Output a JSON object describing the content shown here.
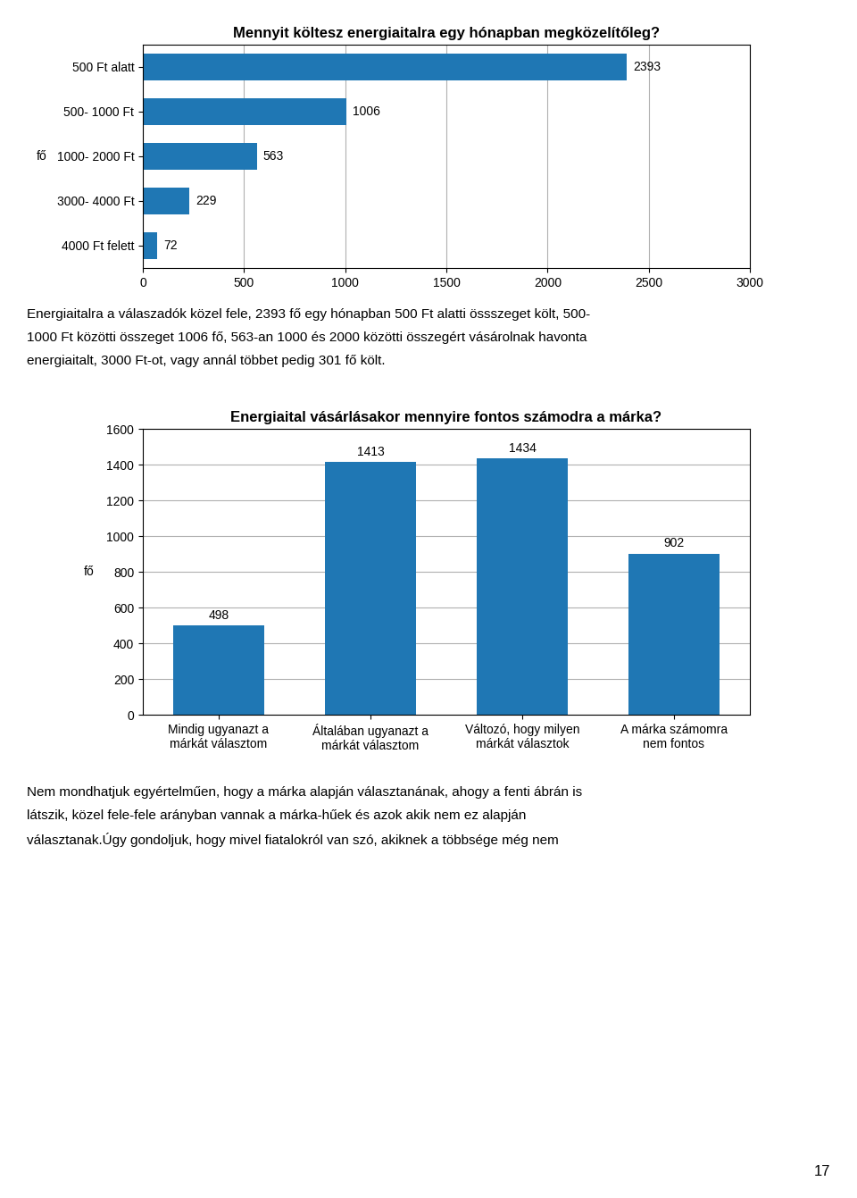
{
  "chart_data": [
    {
      "type": "bar",
      "orientation": "horizontal",
      "title": "Mennyit költesz energiaitalra egy hónapban megközelítőleg?",
      "categories": [
        "4000 Ft felett",
        "3000- 4000 Ft",
        "1000- 2000 Ft",
        "500- 1000 Ft",
        "500 Ft alatt"
      ],
      "values": [
        72,
        229,
        563,
        1006,
        2393
      ],
      "xlim": [
        0,
        3000
      ],
      "xticks": [
        0,
        500,
        1000,
        1500,
        2000,
        2500,
        3000
      ],
      "ylabel": "fő",
      "grid": true,
      "data_labels": true,
      "annotations": [
        "Energiaitalra a válaszadók közel fele, 2393 fő egy hónapban 500 Ft alatti össszeget költ, 500-",
        "1000 Ft közötti összeget 1006 fő, 563-an 1000 és 2000 közötti összegért vásárolnak havonta",
        "energiaitalt, 3000 Ft-ot, vagy annál többet pedig 301 fő költ."
      ]
    },
    {
      "type": "bar",
      "title": "Energiaital vásárlásakor mennyire fontos számodra a márka?",
      "categories": [
        "Mindig ugyanazt a\nmárkát választom",
        "Általában ugyanazt a\nmárkát választom",
        "Változó, hogy milyen\nmárkát választok",
        "A márka számomra\nnem fontos"
      ],
      "values": [
        498,
        1413,
        1434,
        902
      ],
      "ylim": [
        0,
        1600
      ],
      "yticks": [
        0,
        200,
        400,
        600,
        800,
        1000,
        1200,
        1400,
        1600
      ],
      "ylabel": "fő",
      "grid": true,
      "data_labels": true,
      "annotations": [
        "Nem mondhatjuk egyértelműen, hogy a márka alapján választanának, ahogy a fenti ábrán is",
        "látszik, közel fele-fele arányban vannak a márka-hűek és azok akik nem ez alapján",
        "választanak.Úgy gondoljuk, hogy mivel fiatalokról van szó, akiknek a többsége még nem",
        "17"
      ]
    }
  ]
}
